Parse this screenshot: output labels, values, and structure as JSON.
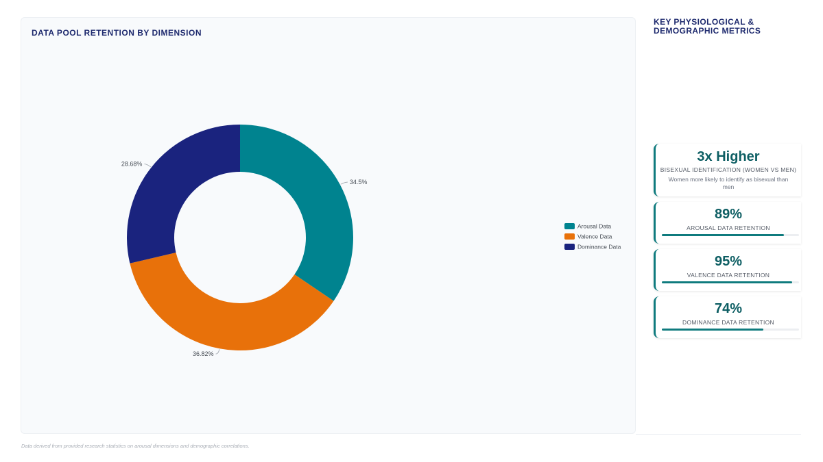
{
  "chart_data": {
    "type": "pie",
    "title": "DATA POOL RETENTION BY DIMENSION",
    "donut": true,
    "categories": [
      "Arousal Data",
      "Valence Data",
      "Dominance Data"
    ],
    "values": [
      34.5,
      36.82,
      28.68
    ],
    "value_labels": [
      "34.5%",
      "36.82%",
      "28.68%"
    ],
    "colors": [
      "#00838f",
      "#e8710a",
      "#1a237e"
    ],
    "legend_placement": "right"
  },
  "sidebar": {
    "title": "KEY PHYSIOLOGICAL & DEMOGRAPHIC METRICS",
    "cards": [
      {
        "value": "3x Higher",
        "label": "BISEXUAL IDENTIFICATION (WOMEN VS MEN)",
        "description": "Women more likely to identify as bisexual than men"
      },
      {
        "value": "89%",
        "label": "AROUSAL DATA RETENTION",
        "progress": 0.89
      },
      {
        "value": "95%",
        "label": "VALENCE DATA RETENTION",
        "progress": 0.95
      },
      {
        "value": "74%",
        "label": "DOMINANCE DATA RETENTION",
        "progress": 0.74
      }
    ]
  },
  "footnote": "Data derived from provided research statistics on arousal dimensions and demographic correlations."
}
